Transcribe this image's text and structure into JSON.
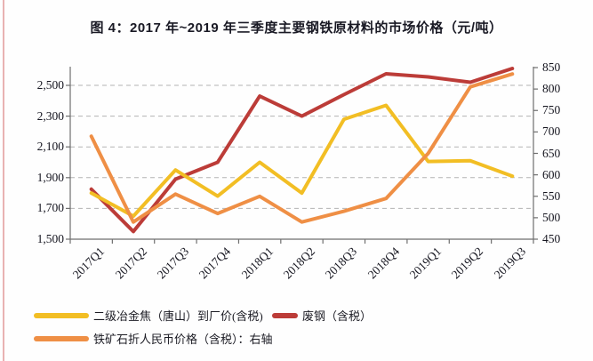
{
  "page": {
    "title": "图 4：2017 年~2019 年三季度主要钢铁原材料的市场价格（元/吨）"
  },
  "chart_data": {
    "type": "line",
    "title": "图 4：2017 年~2019 年三季度主要钢铁原材料的市场价格（元/吨）",
    "unit": "元/吨",
    "categories": [
      "2017Q1",
      "2017Q2",
      "2017Q3",
      "2017Q4",
      "2018Q1",
      "2018Q2",
      "2018Q3",
      "2018Q4",
      "2019Q1",
      "2019Q2",
      "2019Q3"
    ],
    "series": [
      {
        "name": "二级冶金焦（唐山）到厂价(含税)",
        "axis": "left",
        "color": "#F2BE24",
        "values": [
          1800,
          1650,
          1950,
          1780,
          2000,
          1800,
          2280,
          2370,
          2005,
          2010,
          1910
        ]
      },
      {
        "name": "废钢（含税）",
        "axis": "left",
        "color": "#BC3C38",
        "values": [
          1825,
          1550,
          1890,
          2000,
          2430,
          2300,
          2440,
          2575,
          2555,
          2520,
          2610
        ]
      },
      {
        "name": "铁矿石折人民币价格（含税）：右轴",
        "axis": "right",
        "color": "#EF8F45",
        "values": [
          690,
          490,
          555,
          510,
          550,
          490,
          515,
          545,
          650,
          805,
          835
        ]
      }
    ],
    "left_axis": {
      "ticks": [
        2500,
        2300,
        2100,
        1900,
        1700,
        1500
      ],
      "min": 1500,
      "gridline_step": 200
    },
    "right_axis": {
      "ticks": [
        850,
        800,
        750,
        700,
        650,
        600,
        550,
        500,
        450
      ],
      "min": 450,
      "max": 850
    },
    "grid": "horizontal dashed gridlines at left-axis ticks",
    "legend_position": "bottom-left, two rows"
  },
  "colors": {
    "coke_line": "#F2BE24",
    "scrap_line": "#BC3C38",
    "iron_ore_line": "#EF8F45",
    "gridline": "#b3b3b3",
    "axis": "#6f6f6f",
    "text": "#15151f",
    "left_accent_border": "#e9b2b2"
  }
}
